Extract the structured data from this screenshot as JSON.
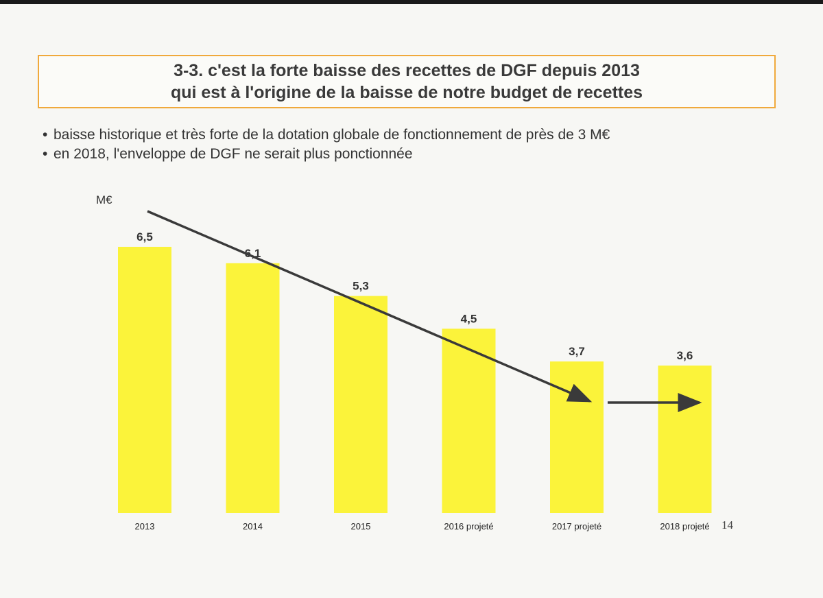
{
  "title": {
    "line1": "3-3. c'est la forte baisse des recettes de DGF depuis 2013",
    "line2": "qui est à l'origine de la baisse de notre budget de recettes"
  },
  "bullets": [
    "baisse historique et très forte de la dotation globale de fonctionnement de près de 3 M€",
    "en 2018, l'enveloppe de DGF ne serait plus ponctionnée"
  ],
  "bullet_symbol": "•",
  "page_number": "14",
  "colors": {
    "bar": "#fbf33a",
    "title_border": "#f0a93c",
    "arrow": "#3a3a3a"
  },
  "chart_data": {
    "type": "bar",
    "unit_label": "M€",
    "categories": [
      "2013",
      "2014",
      "2015",
      "2016 projeté",
      "2017 projeté",
      "2018 projeté"
    ],
    "values": [
      6.5,
      6.1,
      5.3,
      4.5,
      3.7,
      3.6
    ],
    "data_labels": [
      "6,5",
      "6,1",
      "5,3",
      "4,5",
      "3,7",
      "3,6"
    ],
    "annotations": [
      "downward trend arrow from 2013 to 2017",
      "flat arrow 2017 to 2018"
    ],
    "grid": false,
    "legend": "none"
  }
}
